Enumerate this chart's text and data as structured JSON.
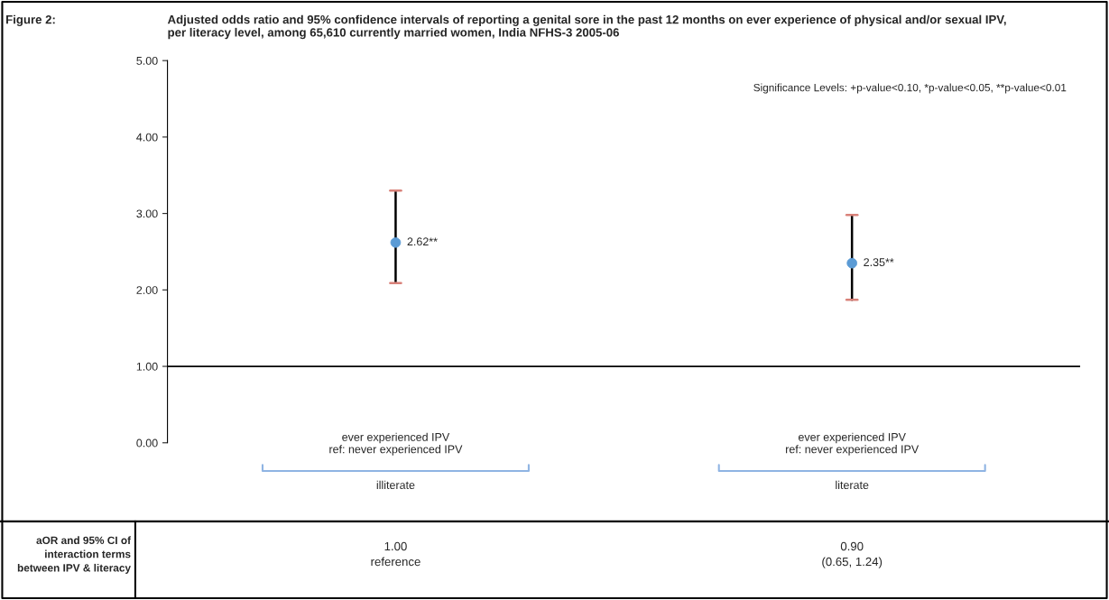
{
  "chart_data": {
    "type": "scatter",
    "title": "Adjusted odds ratio and 95% confidence intervals of reporting a genital sore in the past 12 months on ever experience of physical and/or sexual IPV,\nper literacy level, among 65,610 currently married women, India NFHS-3 2005-06",
    "categories": [
      "ever experienced IPV\nref: never experienced IPV",
      "ever experienced IPV\nref: never experienced IPV"
    ],
    "series": [
      {
        "color": "#5b9bd5",
        "values": [
          2.62,
          2.35
        ],
        "errors": [
          [
            2.09,
            3.3
          ],
          [
            1.87,
            2.98
          ]
        ],
        "value_labels": [
          "2.62**",
          "2.35**"
        ]
      }
    ],
    "marker": "circle",
    "ylim": [
      0,
      5
    ],
    "yticks": [
      {
        "value": 0,
        "label": "0.00"
      },
      {
        "value": 1,
        "label": "1.00"
      },
      {
        "value": 2,
        "label": "2.00"
      },
      {
        "value": 3,
        "label": "3.00"
      },
      {
        "value": 4,
        "label": "4.00"
      },
      {
        "value": 5,
        "label": "5.00"
      }
    ],
    "ref_lines": [
      {
        "axis": "y",
        "value": 1,
        "color": "#000000"
      }
    ],
    "grid": false,
    "legend": false,
    "annotations": [
      "Figure 2:",
      "Significance Levels: +p-value<0.10, *p-value<0.05, **p-value<0.01",
      "illiterate",
      "literate",
      "aOR and 95% CI of\ninteraction terms\nbetween IPV & literacy",
      "1.00\nreference",
      "0.90\n(0.65, 1.24)"
    ]
  }
}
